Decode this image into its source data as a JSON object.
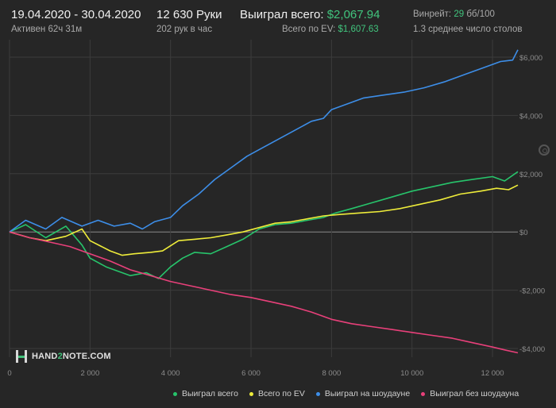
{
  "header": {
    "date_range": "19.04.2020 - 30.04.2020",
    "active_time": "Активен 62ч 31м",
    "hands": "12 630 Руки",
    "hands_per_hour": "202 рук в час",
    "won_total_label": "Выиграл всего:",
    "won_total_value": "$2,067.94",
    "ev_total_label": "Всего по EV:",
    "ev_total_value": "$1,607.63",
    "winrate_label": "Винрейт:",
    "winrate_value": "29",
    "winrate_unit": "бб/100",
    "avg_tables": "1.3 среднее число столов"
  },
  "logo": {
    "part1": "HAND",
    "part2": "2",
    "part3": "NOTE.COM"
  },
  "colors": {
    "background": "#262626",
    "grid": "#3c3c3c",
    "zero_line": "#8a8a8a",
    "green": "#27c46b",
    "yellow": "#eeec3a",
    "blue": "#3d8ee8",
    "pink": "#e8407a"
  },
  "chart_data": {
    "type": "line",
    "xlim": [
      0,
      12630
    ],
    "ylim": [
      -4300,
      6600
    ],
    "x_ticks": [
      0,
      2000,
      4000,
      6000,
      8000,
      10000,
      12000
    ],
    "x_tick_labels": [
      "0",
      "2 000",
      "4 000",
      "6 000",
      "8 000",
      "10 000",
      "12 000"
    ],
    "y_ticks": [
      6000,
      4000,
      2000,
      0,
      -2000,
      -4000
    ],
    "y_tick_labels": [
      "$6,000",
      "$4,000",
      "$2,000",
      "$0",
      "-$2,000",
      "-$4,000"
    ],
    "grid": true,
    "legend_position": "bottom",
    "series": [
      {
        "name": "Выиграл всего",
        "color": "#27c46b",
        "x": [
          0,
          400,
          900,
          1400,
          1800,
          2000,
          2400,
          2700,
          3000,
          3400,
          3700,
          4000,
          4300,
          4600,
          5000,
          5400,
          5800,
          6200,
          6600,
          7000,
          7400,
          7800,
          8100,
          8500,
          9000,
          9500,
          10000,
          10500,
          11000,
          11500,
          12000,
          12300,
          12630
        ],
        "y": [
          0,
          250,
          -200,
          200,
          -450,
          -900,
          -1200,
          -1350,
          -1500,
          -1400,
          -1600,
          -1200,
          -900,
          -700,
          -750,
          -500,
          -250,
          100,
          250,
          300,
          400,
          500,
          650,
          800,
          1000,
          1200,
          1400,
          1550,
          1700,
          1800,
          1900,
          1750,
          2068
        ]
      },
      {
        "name": "Всего по EV",
        "color": "#eeec3a",
        "x": [
          0,
          500,
          900,
          1400,
          1800,
          2000,
          2500,
          2800,
          3100,
          3500,
          3800,
          4200,
          4600,
          5000,
          5400,
          5800,
          6200,
          6600,
          7000,
          7400,
          7800,
          8200,
          8700,
          9200,
          9700,
          10200,
          10700,
          11200,
          11700,
          12100,
          12400,
          12630
        ],
        "y": [
          0,
          -200,
          -300,
          -150,
          100,
          -300,
          -650,
          -800,
          -750,
          -700,
          -650,
          -300,
          -250,
          -200,
          -100,
          0,
          150,
          300,
          350,
          450,
          550,
          600,
          650,
          700,
          800,
          950,
          1100,
          1300,
          1400,
          1500,
          1450,
          1608
        ]
      },
      {
        "name": "Выиграл на шоудауне",
        "color": "#3d8ee8",
        "x": [
          0,
          400,
          900,
          1300,
          1800,
          2200,
          2600,
          3000,
          3300,
          3600,
          4000,
          4300,
          4700,
          5100,
          5500,
          5900,
          6300,
          6700,
          7100,
          7500,
          7800,
          8000,
          8400,
          8800,
          9300,
          9800,
          10300,
          10800,
          11300,
          11800,
          12200,
          12500,
          12630
        ],
        "y": [
          0,
          400,
          100,
          500,
          200,
          400,
          200,
          300,
          100,
          350,
          500,
          900,
          1300,
          1800,
          2200,
          2600,
          2900,
          3200,
          3500,
          3800,
          3900,
          4200,
          4400,
          4600,
          4700,
          4800,
          4950,
          5150,
          5400,
          5650,
          5850,
          5900,
          6250
        ]
      },
      {
        "name": "Выиграл без шоудауна",
        "color": "#e8407a",
        "x": [
          0,
          500,
          1000,
          1500,
          2000,
          2500,
          3000,
          3500,
          4000,
          4500,
          5000,
          5500,
          6000,
          6500,
          7000,
          7500,
          8000,
          8500,
          9000,
          9500,
          10000,
          10500,
          11000,
          11500,
          12000,
          12300,
          12630
        ],
        "y": [
          0,
          -200,
          -350,
          -500,
          -750,
          -1000,
          -1300,
          -1500,
          -1700,
          -1850,
          -2000,
          -2150,
          -2250,
          -2400,
          -2550,
          -2750,
          -3000,
          -3150,
          -3250,
          -3350,
          -3450,
          -3550,
          -3650,
          -3800,
          -3950,
          -4050,
          -4150
        ]
      }
    ]
  }
}
